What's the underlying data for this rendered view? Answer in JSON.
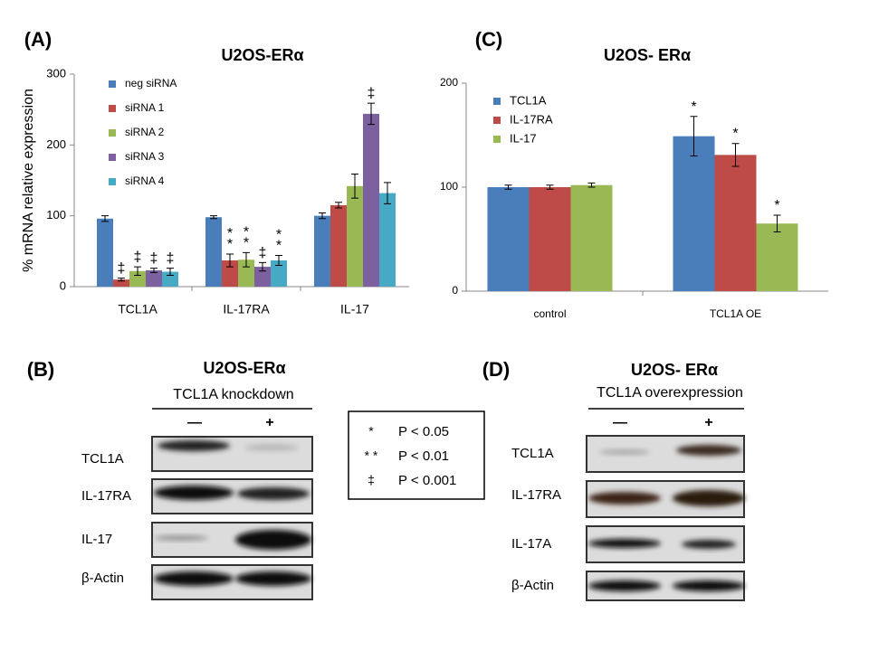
{
  "chart_data": [
    {
      "type": "bar",
      "panel_label": "(A)",
      "title": "U2OS-ERα",
      "y_label": "% mRNA relative expression",
      "categories": [
        "TCL1A",
        "IL-17RA",
        "IL-17"
      ],
      "ylim": [
        0,
        300
      ],
      "yticks": [
        0,
        100,
        200,
        300
      ],
      "legend": "upper left",
      "series": [
        {
          "name": "neg siRNA",
          "color": "#4a7ebb",
          "values": [
            96,
            98,
            100
          ],
          "errors": [
            4,
            2,
            4
          ],
          "significance": [
            null,
            null,
            null
          ]
        },
        {
          "name": "siRNA 1",
          "color": "#be4b48",
          "values": [
            10,
            37,
            115
          ],
          "errors": [
            2,
            9,
            4
          ],
          "significance": [
            "‡",
            "**",
            null
          ]
        },
        {
          "name": "siRNA 2",
          "color": "#98b954",
          "values": [
            22,
            38,
            142
          ],
          "errors": [
            6,
            10,
            17
          ],
          "significance": [
            "‡",
            "**",
            null
          ]
        },
        {
          "name": "siRNA 3",
          "color": "#7d60a0",
          "values": [
            23,
            28,
            244
          ],
          "errors": [
            3,
            6,
            15
          ],
          "significance": [
            "‡",
            "‡",
            "‡"
          ]
        },
        {
          "name": "siRNA 4",
          "color": "#46aac5",
          "values": [
            21,
            37,
            132
          ],
          "errors": [
            5,
            7,
            15
          ],
          "significance": [
            "‡",
            "**",
            null
          ]
        }
      ]
    },
    {
      "type": "bar",
      "panel_label": "(C)",
      "title": "U2OS- ERα",
      "categories": [
        "control",
        "TCL1A OE"
      ],
      "ylim": [
        0,
        200
      ],
      "yticks": [
        0,
        100,
        200
      ],
      "legend": "upper left",
      "series": [
        {
          "name": "TCL1A",
          "color": "#4a7ebb",
          "values": [
            100,
            149
          ],
          "errors": [
            2,
            19
          ],
          "significance": [
            null,
            "*"
          ]
        },
        {
          "name": "IL-17RA",
          "color": "#be4b48",
          "values": [
            100,
            131
          ],
          "errors": [
            2,
            11
          ],
          "significance": [
            null,
            "*"
          ]
        },
        {
          "name": "IL-17",
          "color": "#98b954",
          "values": [
            102,
            65
          ],
          "errors": [
            2,
            8
          ],
          "significance": [
            null,
            "*"
          ]
        }
      ]
    }
  ],
  "significance_legend": [
    {
      "symbol": "*",
      "text": "P < 0.05"
    },
    {
      "symbol": "* *",
      "text": "P < 0.01"
    },
    {
      "symbol": "‡",
      "text": "P < 0.001"
    }
  ],
  "blots": [
    {
      "panel_label": "(B)",
      "title": "U2OS-ERα",
      "subtitle": "TCL1A knockdown",
      "lanes": [
        "—",
        "+"
      ],
      "rows": [
        "TCL1A",
        "IL-17RA",
        "IL-17",
        "β-Actin"
      ]
    },
    {
      "panel_label": "(D)",
      "title": "U2OS- ERα",
      "subtitle": "TCL1A overexpression",
      "lanes": [
        "—",
        "+"
      ],
      "rows": [
        "TCL1A",
        "IL-17RA",
        "IL-17A",
        "β-Actin"
      ]
    }
  ]
}
